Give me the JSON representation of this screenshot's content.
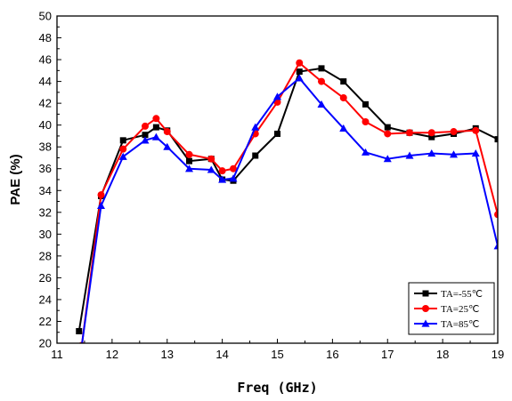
{
  "chart_data": {
    "type": "line",
    "title": "",
    "xlabel": "Freq (GHz)",
    "ylabel": "PAE (%)",
    "xlim": [
      11,
      19
    ],
    "ylim": [
      20,
      50
    ],
    "x_ticks": [
      "11",
      "12",
      "13",
      "14",
      "15",
      "16",
      "17",
      "18",
      "19"
    ],
    "y_ticks": [
      "20",
      "22",
      "24",
      "26",
      "28",
      "30",
      "32",
      "34",
      "36",
      "38",
      "40",
      "42",
      "44",
      "46",
      "48",
      "50"
    ],
    "grid": false,
    "legend_position": "bottom-right",
    "series": [
      {
        "name": "TA=-55℃",
        "color": "#000000",
        "marker": "square",
        "x": [
          11.4,
          11.8,
          12.2,
          12.6,
          12.8,
          13.0,
          13.4,
          13.8,
          14.0,
          14.2,
          14.6,
          15.0,
          15.4,
          15.8,
          16.2,
          16.6,
          17.0,
          17.4,
          17.8,
          18.2,
          18.6,
          19.0
        ],
        "y": [
          21.1,
          33.5,
          38.6,
          39.1,
          39.8,
          39.5,
          36.7,
          36.9,
          35.0,
          34.9,
          37.2,
          39.2,
          44.9,
          45.2,
          44.0,
          41.9,
          39.8,
          39.3,
          38.9,
          39.2,
          39.7,
          38.7
        ]
      },
      {
        "name": "TA=25℃",
        "color": "#ff0000",
        "marker": "circle",
        "x": [
          11.45,
          11.8,
          12.2,
          12.6,
          12.8,
          13.0,
          13.4,
          13.8,
          14.0,
          14.2,
          14.6,
          15.0,
          15.4,
          15.8,
          16.2,
          16.6,
          17.0,
          17.4,
          17.8,
          18.2,
          18.6,
          19.0
        ],
        "y": [
          19.8,
          33.6,
          37.8,
          39.9,
          40.6,
          39.4,
          37.3,
          36.9,
          35.8,
          36.0,
          39.2,
          42.1,
          45.7,
          44.0,
          42.5,
          40.3,
          39.2,
          39.3,
          39.3,
          39.4,
          39.5,
          31.8
        ]
      },
      {
        "name": "TA=85℃",
        "color": "#0000ff",
        "marker": "triangle",
        "x": [
          11.45,
          11.8,
          12.2,
          12.6,
          12.8,
          13.0,
          13.4,
          13.8,
          14.0,
          14.2,
          14.6,
          15.0,
          15.4,
          15.8,
          16.2,
          16.6,
          17.0,
          17.4,
          17.8,
          18.2,
          18.6,
          19.0
        ],
        "y": [
          19.8,
          32.6,
          37.1,
          38.6,
          38.9,
          38.0,
          36.0,
          35.9,
          35.0,
          35.1,
          39.8,
          42.6,
          44.3,
          41.9,
          39.7,
          37.5,
          36.9,
          37.2,
          37.4,
          37.3,
          37.4,
          28.9
        ]
      }
    ]
  }
}
